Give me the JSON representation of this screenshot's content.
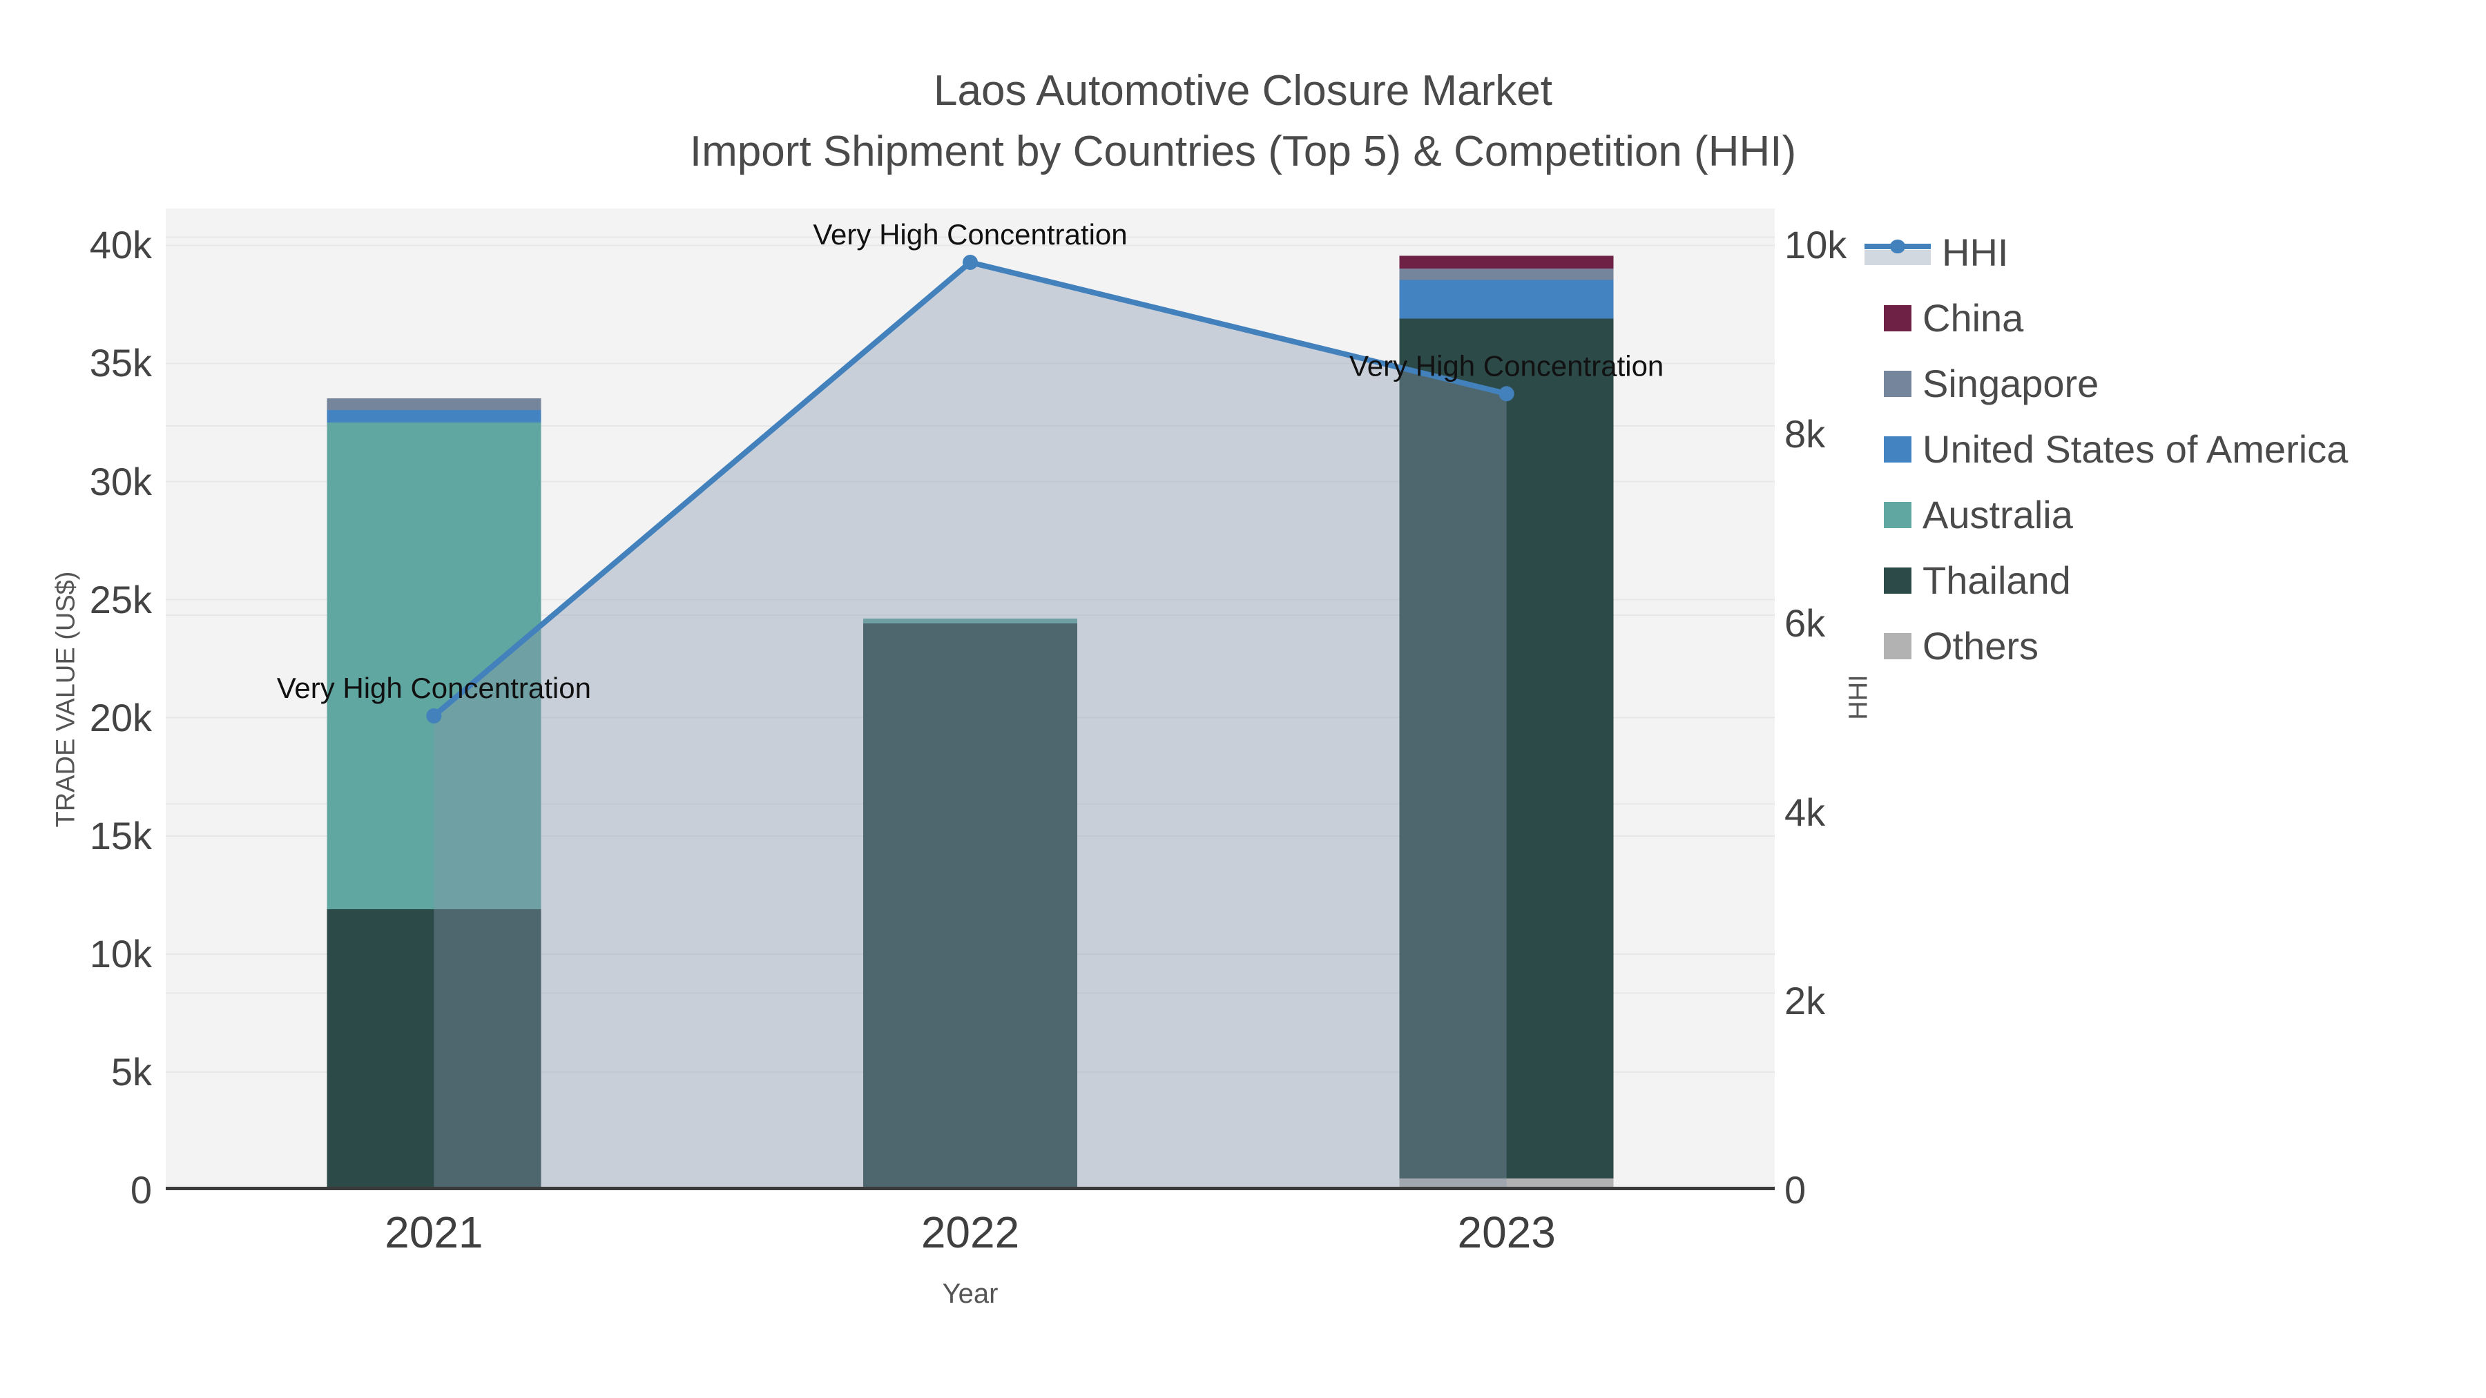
{
  "title": {
    "line1": "Laos Automotive Closure Market",
    "line2": "Import Shipment by Countries (Top 5) & Competition (HHI)"
  },
  "chart_data": {
    "type": "bar",
    "subtype": "stacked-bars-with-line-area-dual-axis",
    "title": "Laos Automotive Closure Market Import Shipment by Countries (Top 5) & Competition (HHI)",
    "categories": [
      "2021",
      "2022",
      "2023"
    ],
    "xlabel": "Year",
    "y_left": {
      "label": "TRADE VALUE (US$)",
      "range": [
        0,
        41560
      ],
      "ticks": [
        0,
        5000,
        10000,
        15000,
        20000,
        25000,
        30000,
        35000,
        40000
      ],
      "tick_labels": [
        "0",
        "5k",
        "10k",
        "15k",
        "20k",
        "25k",
        "30k",
        "35k",
        "40k"
      ]
    },
    "y_right": {
      "label": "HHI",
      "range": [
        0,
        10390
      ],
      "ticks": [
        0,
        2000,
        4000,
        6000,
        8000,
        10000
      ],
      "tick_labels": [
        "0",
        "2k",
        "4k",
        "6k",
        "8k",
        "10k"
      ]
    },
    "series": [
      {
        "name": "China",
        "color": "#6e2144",
        "values": [
          0,
          0,
          550
        ]
      },
      {
        "name": "Singapore",
        "color": "#75859b",
        "values": [
          500,
          0,
          470
        ]
      },
      {
        "name": "United States of America",
        "color": "#4383c1",
        "values": [
          530,
          0,
          1640
        ]
      },
      {
        "name": "Australia",
        "color": "#60a6a1",
        "values": [
          20600,
          200,
          0
        ]
      },
      {
        "name": "Thailand",
        "color": "#2c4a48",
        "values": [
          11900,
          24000,
          36400
        ]
      },
      {
        "name": "Others",
        "color": "#b2b2b2",
        "values": [
          0,
          0,
          500
        ]
      }
    ],
    "stack_order_bottom_to_top": [
      "Others",
      "Thailand",
      "Australia",
      "United States of America",
      "Singapore",
      "China"
    ],
    "bar_totals": [
      33530,
      24200,
      39560
    ],
    "line_series": {
      "name": "HHI",
      "axis": "right",
      "color": "#4381bd",
      "fill_color": "rgba(133,149,171,0.38)",
      "values": [
        5020,
        9820,
        8430
      ]
    },
    "annotations": [
      {
        "text": "Very High Concentration",
        "category": "2021",
        "hhi": 5020
      },
      {
        "text": "Very High Concentration",
        "category": "2022",
        "hhi": 9820
      },
      {
        "text": "Very High Concentration",
        "category": "2023",
        "hhi": 8430
      }
    ],
    "legend": {
      "position": "right",
      "items": [
        "HHI",
        "China",
        "Singapore",
        "United States of America",
        "Australia",
        "Thailand",
        "Others"
      ]
    },
    "style": {
      "plot_bg": "#f3f3f4",
      "grid": "#e7e7e8",
      "axis_line": "#3a3a3a",
      "tick_color": "#444444",
      "xtick_color": "#3f3f3f",
      "title_color": "#4a4a4a",
      "axis_title_color": "#555555",
      "annotation_color": "#111111",
      "legend_band": "#d2d8e0",
      "grid_on": true
    }
  }
}
